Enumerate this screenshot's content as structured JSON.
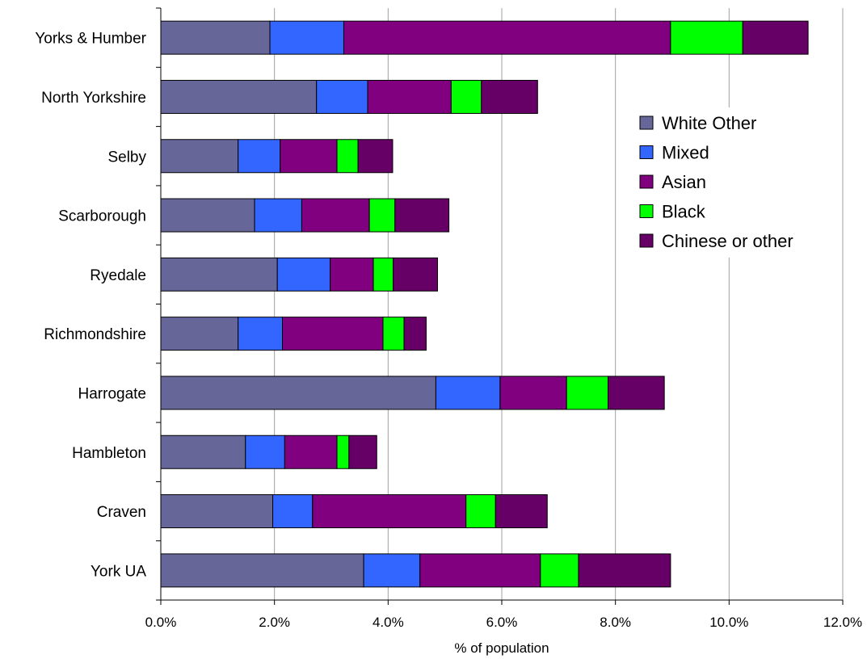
{
  "chart_data": {
    "type": "bar",
    "orientation": "horizontal",
    "stacked": true,
    "categories": [
      "Yorks & Humber",
      "North Yorkshire",
      "Selby",
      "Scarborough",
      "Ryedale",
      "Richmondshire",
      "Harrogate",
      "Hambleton",
      "Craven",
      "York UA"
    ],
    "series": [
      {
        "name": "White Other",
        "color": "#666699",
        "values": [
          1.92,
          2.74,
          1.36,
          1.65,
          2.05,
          1.36,
          4.84,
          1.49,
          1.97,
          3.57
        ]
      },
      {
        "name": "Mixed",
        "color": "#3366ff",
        "values": [
          1.3,
          0.9,
          0.74,
          0.83,
          0.93,
          0.78,
          1.13,
          0.69,
          0.7,
          0.99
        ]
      },
      {
        "name": "Asian",
        "color": "#800080",
        "values": [
          5.75,
          1.47,
          1.0,
          1.19,
          0.76,
          1.77,
          1.17,
          0.92,
          2.7,
          2.12
        ]
      },
      {
        "name": "Black",
        "color": "#00ff00",
        "values": [
          1.27,
          0.53,
          0.37,
          0.45,
          0.35,
          0.37,
          0.73,
          0.21,
          0.52,
          0.67
        ]
      },
      {
        "name": "Chinese or other",
        "color": "#660066",
        "values": [
          1.15,
          0.99,
          0.61,
          0.95,
          0.78,
          0.39,
          0.99,
          0.49,
          0.91,
          1.62
        ]
      }
    ],
    "xlabel": "% of population",
    "ylabel": "",
    "xlim": [
      0,
      12
    ],
    "xticks": [
      "0.0%",
      "2.0%",
      "4.0%",
      "6.0%",
      "8.0%",
      "10.0%",
      "12.0%"
    ],
    "grid": "vertical",
    "legend_position": "right"
  }
}
